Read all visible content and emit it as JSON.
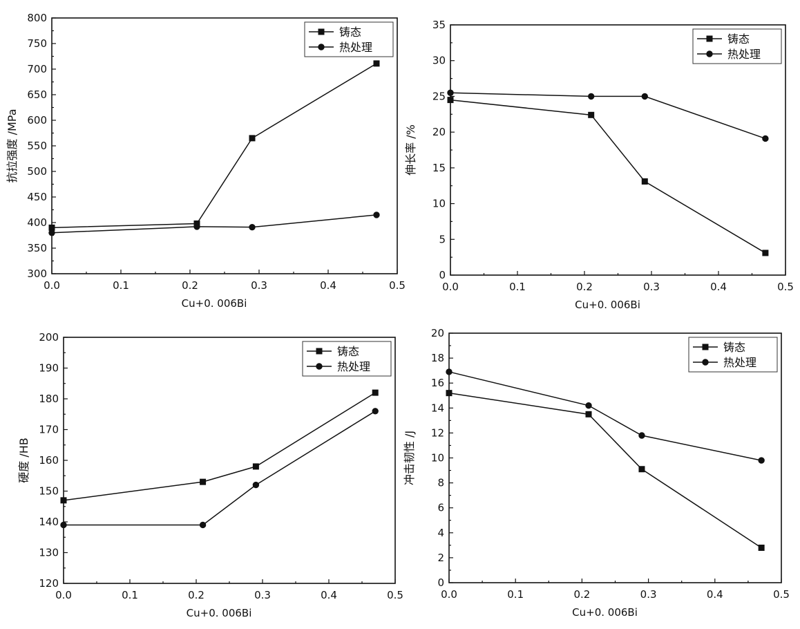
{
  "chart_data": [
    {
      "type": "line",
      "xlabel": "Cu+0. 006Bi",
      "ylabel": "抗拉强度 /MPa",
      "xlim": [
        0,
        0.5
      ],
      "ylim": [
        300,
        800
      ],
      "xticks": [
        "0.0",
        "0.1",
        "0.2",
        "0.3",
        "0.4",
        "0.5"
      ],
      "yticks": [
        "300",
        "350",
        "400",
        "450",
        "500",
        "550",
        "600",
        "650",
        "700",
        "750",
        "800"
      ],
      "x": [
        0.0,
        0.21,
        0.29,
        0.47
      ],
      "legend_position": "top-right",
      "series": [
        {
          "name": "铸态",
          "marker": "square",
          "values": [
            390,
            398,
            565,
            711
          ]
        },
        {
          "name": "热处理",
          "marker": "circle",
          "values": [
            380,
            392,
            391,
            415
          ]
        }
      ]
    },
    {
      "type": "line",
      "xlabel": "Cu+0. 006Bi",
      "ylabel": "伸长率 /%",
      "xlim": [
        0,
        0.5
      ],
      "ylim": [
        0,
        35
      ],
      "xticks": [
        "0.0",
        "0.1",
        "0.2",
        "0.3",
        "0.4",
        "0.5"
      ],
      "yticks": [
        "0",
        "5",
        "10",
        "15",
        "20",
        "25",
        "30",
        "35"
      ],
      "x": [
        0.0,
        0.21,
        0.29,
        0.47
      ],
      "legend_position": "top-right",
      "series": [
        {
          "name": "铸态",
          "marker": "square",
          "values": [
            24.5,
            22.4,
            13.1,
            3.1
          ]
        },
        {
          "name": "热处理",
          "marker": "circle",
          "values": [
            25.5,
            25.0,
            25.0,
            19.1
          ]
        }
      ]
    },
    {
      "type": "line",
      "xlabel": "Cu+0. 006Bi",
      "ylabel": "硬度 /HB",
      "xlim": [
        0,
        0.5
      ],
      "ylim": [
        120,
        200
      ],
      "xticks": [
        "0.0",
        "0.1",
        "0.2",
        "0.3",
        "0.4",
        "0.5"
      ],
      "yticks": [
        "120",
        "130",
        "140",
        "150",
        "160",
        "170",
        "180",
        "190",
        "200"
      ],
      "x": [
        0.0,
        0.21,
        0.29,
        0.47
      ],
      "legend_position": "top-right",
      "series": [
        {
          "name": "铸态",
          "marker": "square",
          "values": [
            147,
            153,
            158,
            182
          ]
        },
        {
          "name": "热处理",
          "marker": "circle",
          "values": [
            139,
            139,
            152,
            176
          ]
        }
      ]
    },
    {
      "type": "line",
      "xlabel": "Cu+0. 006Bi",
      "ylabel": "冲击韧性 /J",
      "xlim": [
        0,
        0.5
      ],
      "ylim": [
        0,
        20
      ],
      "xticks": [
        "0.0",
        "0.1",
        "0.2",
        "0.3",
        "0.4",
        "0.5"
      ],
      "yticks": [
        "0",
        "2",
        "4",
        "6",
        "8",
        "10",
        "12",
        "14",
        "16",
        "18",
        "20"
      ],
      "x": [
        0.0,
        0.21,
        0.29,
        0.47
      ],
      "legend_position": "top-right",
      "series": [
        {
          "name": "铸态",
          "marker": "square",
          "values": [
            15.2,
            13.5,
            9.1,
            2.8
          ]
        },
        {
          "name": "热处理",
          "marker": "circle",
          "values": [
            16.9,
            14.2,
            11.8,
            9.8
          ]
        }
      ]
    }
  ]
}
